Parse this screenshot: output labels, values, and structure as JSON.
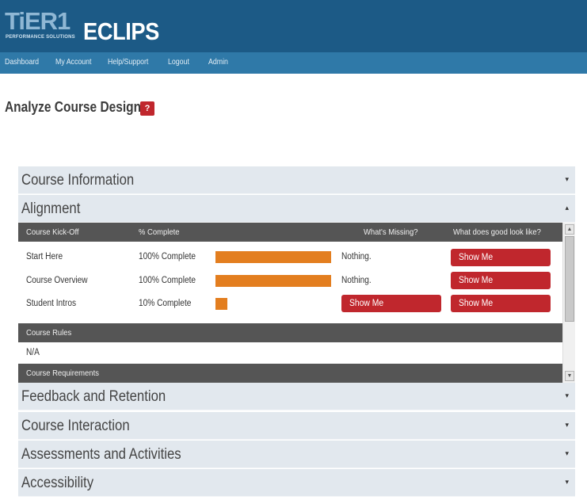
{
  "header": {
    "logo_tier": "TiER1",
    "logo_sub": "PERFORMANCE SOLUTIONS",
    "logo_app": "ECLIPS"
  },
  "nav": {
    "items": [
      "Dashboard",
      "My Account",
      "Help/Support",
      "Logout",
      "Admin"
    ]
  },
  "page": {
    "title": "Analyze Course Design",
    "help_label": "?"
  },
  "accordion": {
    "sections": [
      {
        "label": "Course Information",
        "caret": "▾"
      },
      {
        "label": "Alignment",
        "caret": "▴"
      },
      {
        "label": "Feedback and Retention",
        "caret": "▾"
      },
      {
        "label": "Course Interaction",
        "caret": "▾"
      },
      {
        "label": "Assessments and Activities",
        "caret": "▾"
      },
      {
        "label": "Accessibility",
        "caret": "▾"
      }
    ]
  },
  "alignment": {
    "kickoff_header": {
      "col1": "Course Kick-Off",
      "col2": "% Complete",
      "col3": "What's Missing?",
      "col4": "What does good look like?"
    },
    "rows": [
      {
        "name": "Start Here",
        "complete": "100% Complete",
        "progress": 1.0,
        "missing": "Nothing.",
        "missing_button": "",
        "good_button": "Show Me"
      },
      {
        "name": "Course Overview",
        "complete": "100% Complete",
        "progress": 1.0,
        "missing": "Nothing.",
        "missing_button": "",
        "good_button": "Show Me"
      },
      {
        "name": "Student Intros",
        "complete": "10% Complete",
        "progress": 0.1,
        "missing": "",
        "missing_button": "Show Me",
        "good_button": "Show Me"
      }
    ],
    "rules_header": "Course Rules",
    "rules_value": "N/A",
    "requirements_header": "Course Requirements"
  },
  "scrollbar": {
    "up_icon": "▲",
    "down_icon": "▼"
  },
  "colors": {
    "header_bg": "#1c5a86",
    "nav_bg": "#2f79a8",
    "accent_red": "#c0272d",
    "progress_orange": "#e37e1f",
    "section_dark": "#555555",
    "accordion_bg": "#e2e8ee"
  }
}
